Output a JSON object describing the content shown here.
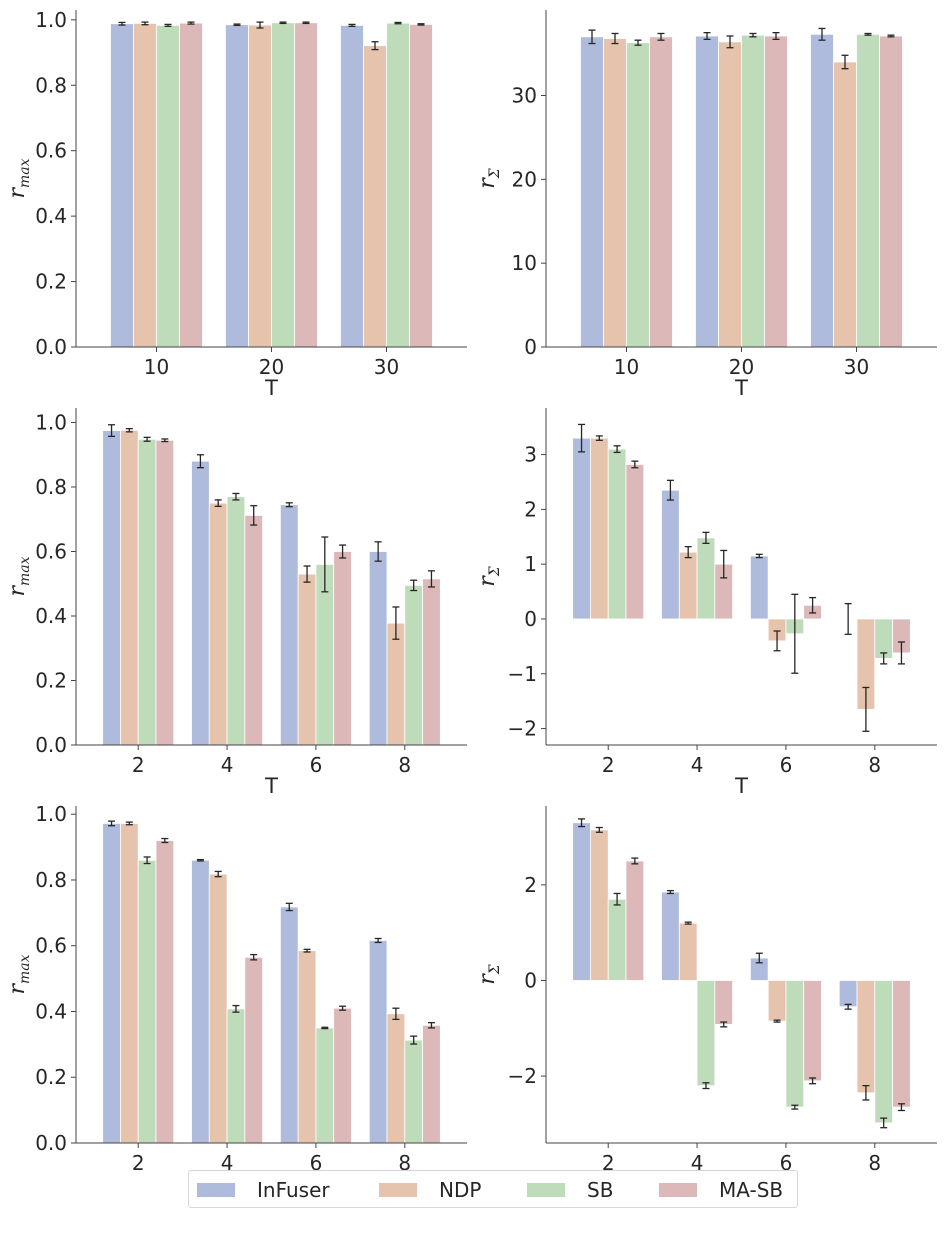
{
  "chart_data": [
    {
      "type": "bar",
      "panel": "top-left",
      "categories": [
        "10",
        "20",
        "30"
      ],
      "xlabel": "T",
      "ylabel": "r",
      "ylabel_sub": "max",
      "ylim": [
        0,
        1.03
      ],
      "yticks": [
        "0.0",
        "0.2",
        "0.4",
        "0.6",
        "0.8",
        "1.0"
      ],
      "series": [
        {
          "name": "InFuser",
          "values": [
            0.988,
            0.985,
            0.983
          ],
          "err": [
            0.004,
            0.002,
            0.003
          ]
        },
        {
          "name": "NDP",
          "values": [
            0.989,
            0.984,
            0.921
          ],
          "err": [
            0.004,
            0.009,
            0.012
          ]
        },
        {
          "name": "SB",
          "values": [
            0.983,
            0.991,
            0.99
          ],
          "err": [
            0.003,
            0.002,
            0.002
          ]
        },
        {
          "name": "MA-SB",
          "values": [
            0.99,
            0.991,
            0.986
          ],
          "err": [
            0.003,
            0.002,
            0.002
          ]
        }
      ]
    },
    {
      "type": "bar",
      "panel": "top-right",
      "categories": [
        "10",
        "20",
        "30"
      ],
      "xlabel": "T",
      "ylabel": "r",
      "ylabel_sub": "Σ",
      "ylim": [
        0,
        40.2
      ],
      "yticks": [
        "0",
        "10",
        "20",
        "30"
      ],
      "series": [
        {
          "name": "InFuser",
          "values": [
            37.0,
            37.1,
            37.3
          ],
          "err": [
            0.8,
            0.4,
            0.7
          ]
        },
        {
          "name": "NDP",
          "values": [
            36.8,
            36.4,
            34.0
          ],
          "err": [
            0.6,
            0.7,
            0.8
          ]
        },
        {
          "name": "SB",
          "values": [
            36.3,
            37.2,
            37.3
          ],
          "err": [
            0.3,
            0.2,
            0.1
          ]
        },
        {
          "name": "MA-SB",
          "values": [
            37.0,
            37.1,
            37.1
          ],
          "err": [
            0.4,
            0.4,
            0.1
          ]
        }
      ]
    },
    {
      "type": "bar",
      "panel": "middle-left",
      "categories": [
        "2",
        "4",
        "6",
        "8"
      ],
      "xlabel": "T",
      "ylabel": "r",
      "ylabel_sub": "max",
      "ylim": [
        0,
        1.045
      ],
      "yticks": [
        "0.0",
        "0.2",
        "0.4",
        "0.6",
        "0.8",
        "1.0"
      ],
      "series": [
        {
          "name": "InFuser",
          "values": [
            0.975,
            0.88,
            0.745,
            0.6
          ],
          "err": [
            0.018,
            0.02,
            0.006,
            0.03
          ]
        },
        {
          "name": "NDP",
          "values": [
            0.976,
            0.75,
            0.53,
            0.378
          ],
          "err": [
            0.005,
            0.01,
            0.025,
            0.05
          ]
        },
        {
          "name": "SB",
          "values": [
            0.948,
            0.77,
            0.56,
            0.495
          ],
          "err": [
            0.006,
            0.01,
            0.085,
            0.016
          ]
        },
        {
          "name": "MA-SB",
          "values": [
            0.945,
            0.712,
            0.6,
            0.515
          ],
          "err": [
            0.004,
            0.03,
            0.02,
            0.025
          ]
        }
      ]
    },
    {
      "type": "bar",
      "panel": "middle-right",
      "categories": [
        "2",
        "4",
        "6",
        "8"
      ],
      "xlabel": "T",
      "ylabel": "r",
      "ylabel_sub": "Σ",
      "ylim": [
        -2.3,
        3.85
      ],
      "yticks": [
        "−2",
        "−1",
        "0",
        "1",
        "2",
        "3"
      ],
      "series": [
        {
          "name": "InFuser",
          "values": [
            3.3,
            2.35,
            1.15,
            0.0
          ],
          "err": [
            0.25,
            0.18,
            0.03,
            0.28
          ]
        },
        {
          "name": "NDP",
          "values": [
            3.3,
            1.22,
            -0.4,
            -1.65
          ],
          "err": [
            0.04,
            0.1,
            0.18,
            0.4
          ]
        },
        {
          "name": "SB",
          "values": [
            3.1,
            1.48,
            -0.27,
            -0.72
          ],
          "err": [
            0.06,
            0.1,
            0.72,
            0.1
          ]
        },
        {
          "name": "MA-SB",
          "values": [
            2.82,
            1.0,
            0.25,
            -0.62
          ],
          "err": [
            0.06,
            0.25,
            0.14,
            0.2
          ]
        }
      ]
    },
    {
      "type": "bar",
      "panel": "bottom-left",
      "categories": [
        "2",
        "4",
        "6",
        "8"
      ],
      "xlabel": "T",
      "ylabel": "r",
      "ylabel_sub": "max",
      "ylim": [
        0,
        1.025
      ],
      "yticks": [
        "0.0",
        "0.2",
        "0.4",
        "0.6",
        "0.8",
        "1.0"
      ],
      "series": [
        {
          "name": "InFuser",
          "values": [
            0.972,
            0.86,
            0.718,
            0.616
          ],
          "err": [
            0.007,
            0.002,
            0.011,
            0.006
          ]
        },
        {
          "name": "NDP",
          "values": [
            0.972,
            0.818,
            0.585,
            0.393
          ],
          "err": [
            0.004,
            0.008,
            0.004,
            0.017
          ]
        },
        {
          "name": "SB",
          "values": [
            0.86,
            0.408,
            0.35,
            0.313
          ],
          "err": [
            0.01,
            0.01,
            0.002,
            0.012
          ]
        },
        {
          "name": "MA-SB",
          "values": [
            0.92,
            0.565,
            0.41,
            0.358
          ],
          "err": [
            0.006,
            0.008,
            0.006,
            0.008
          ]
        }
      ]
    },
    {
      "type": "bar",
      "panel": "bottom-right",
      "categories": [
        "2",
        "4",
        "6",
        "8"
      ],
      "xlabel": "T",
      "ylabel": "r",
      "ylabel_sub": "Σ",
      "ylim": [
        -3.4,
        3.65
      ],
      "yticks": [
        "−2",
        "0",
        "2"
      ],
      "series": [
        {
          "name": "InFuser",
          "values": [
            3.3,
            1.85,
            0.47,
            -0.55
          ],
          "err": [
            0.08,
            0.03,
            0.1,
            0.05
          ]
        },
        {
          "name": "NDP",
          "values": [
            3.15,
            1.2,
            -0.85,
            -2.35
          ],
          "err": [
            0.05,
            0.02,
            0.02,
            0.15
          ]
        },
        {
          "name": "SB",
          "values": [
            1.7,
            -2.2,
            -2.65,
            -2.98
          ],
          "err": [
            0.12,
            0.06,
            0.04,
            0.1
          ]
        },
        {
          "name": "MA-SB",
          "values": [
            2.5,
            -0.92,
            -2.1,
            -2.65
          ],
          "err": [
            0.06,
            0.05,
            0.06,
            0.07
          ]
        }
      ]
    }
  ],
  "legend": {
    "placement": "bottom-center",
    "items": [
      {
        "label": "InFuser",
        "color": "#aebbdc"
      },
      {
        "label": "NDP",
        "color": "#e6c3ad"
      },
      {
        "label": "SB",
        "color": "#bfdcba"
      },
      {
        "label": "MA-SB",
        "color": "#dcb8b9"
      }
    ]
  },
  "colors": [
    "#aebbdc",
    "#e6c3ad",
    "#bfdcba",
    "#dcb8b9"
  ],
  "error_bar_color": "#262626"
}
